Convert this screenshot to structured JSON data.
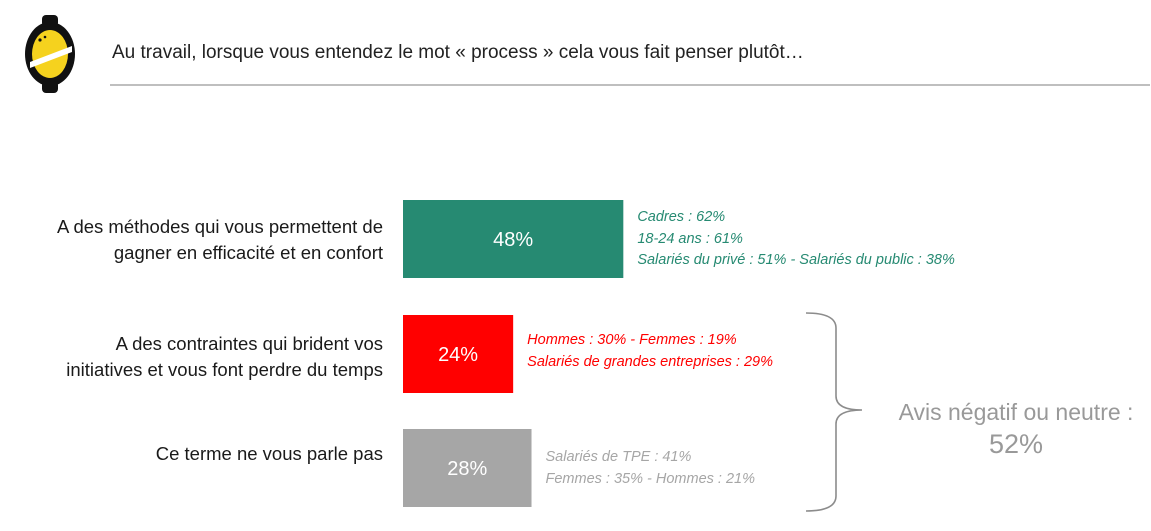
{
  "header": {
    "question": "Au travail, lorsque vous entendez le mot « process » cela vous fait penser plutôt…"
  },
  "logo": {
    "icon": "lemon-logo-icon",
    "color": "#F5D21E"
  },
  "chart_data": {
    "type": "bar",
    "orientation": "horizontal",
    "xlim": [
      0,
      100
    ],
    "unit": "%",
    "categories": [
      "A des méthodes qui vous permettent de gagner en efficacité et en confort",
      "A des contraintes qui brident vos initiatives et vous font perdre du temps",
      "Ce terme ne vous parle pas"
    ],
    "category_lines": [
      [
        "A des méthodes qui vous permettent de",
        "gagner en efficacité et en confort"
      ],
      [
        "A des contraintes qui brident vos",
        "initiatives et vous font perdre du temps"
      ],
      [
        "Ce terme ne vous parle pas"
      ]
    ],
    "values": [
      48,
      24,
      28
    ],
    "value_labels": [
      "48%",
      "24%",
      "28%"
    ],
    "colors": [
      "#268A72",
      "#FF0000",
      "#A6A6A6"
    ],
    "annotations": [
      [
        "Cadres : 62%",
        "18-24 ans : 61%",
        "Salariés du privé : 51% - Salariés du public : 38%"
      ],
      [
        "Hommes : 30% - Femmes : 19%",
        "Salariés de grandes entreprises : 29%"
      ],
      [
        "Salariés de TPE : 41%",
        "Femmes : 35% - Hommes : 21%"
      ]
    ],
    "annotation_colors": [
      "#268A72",
      "#FF0000",
      "#A6A6A6"
    ],
    "summary": {
      "label": "Avis négatif ou neutre :",
      "value": "52%",
      "groups": [
        1,
        2
      ],
      "color": "#999999"
    },
    "grid": false,
    "legend": "none"
  }
}
